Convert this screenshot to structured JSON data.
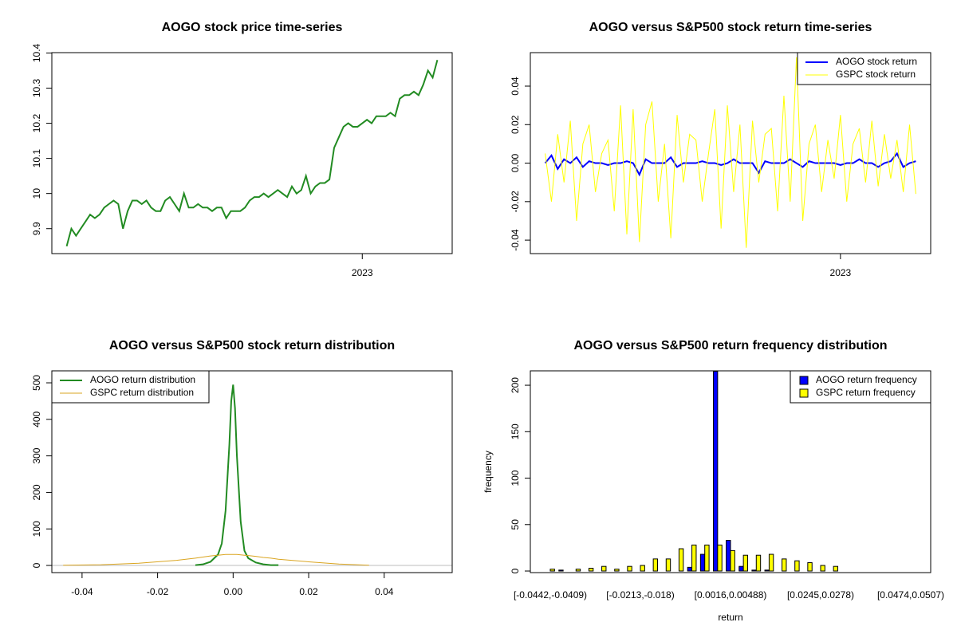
{
  "chart_data": [
    {
      "type": "line",
      "title": "AOGO stock price time-series",
      "color": "#228b22",
      "values": [
        9.85,
        9.9,
        9.88,
        9.9,
        9.92,
        9.94,
        9.93,
        9.94,
        9.96,
        9.97,
        9.98,
        9.97,
        9.9,
        9.95,
        9.98,
        9.98,
        9.97,
        9.98,
        9.96,
        9.95,
        9.95,
        9.98,
        9.99,
        9.97,
        9.95,
        10.0,
        9.96,
        9.96,
        9.97,
        9.96,
        9.96,
        9.95,
        9.96,
        9.96,
        9.93,
        9.95,
        9.95,
        9.95,
        9.96,
        9.98,
        9.99,
        9.99,
        10.0,
        9.99,
        10.0,
        10.01,
        10.0,
        9.99,
        10.02,
        10.0,
        10.01,
        10.05,
        10.0,
        10.02,
        10.03,
        10.03,
        10.04,
        10.13,
        10.16,
        10.19,
        10.2,
        10.19,
        10.19,
        10.2,
        10.21,
        10.2,
        10.22,
        10.22,
        10.22,
        10.23,
        10.22,
        10.27,
        10.28,
        10.28,
        10.29,
        10.28,
        10.31,
        10.35,
        10.33,
        10.38
      ],
      "xlim": [
        -3.16,
        82.16
      ],
      "xticks": [
        {
          "value": 63,
          "label": "2023"
        }
      ],
      "ylim": [
        9.829,
        10.401
      ],
      "yticks": [
        9.9,
        10.0,
        10.1,
        10.2,
        10.3,
        10.4
      ]
    },
    {
      "type": "line",
      "title": "AOGO versus S&P500 stock return time-series",
      "legend": "topright",
      "series": [
        {
          "name": "AOGO stock return",
          "color": "#0000ff",
          "values": [
            0,
            0.004,
            -0.003,
            0.002,
            0,
            0.003,
            -0.002,
            0.001,
            0,
            0,
            -0.001,
            0,
            0,
            0.001,
            0,
            -0.006,
            0.002,
            0,
            0,
            0,
            0.003,
            -0.002,
            0,
            0,
            0,
            0.001,
            0,
            0,
            -0.001,
            0,
            0.002,
            0,
            0,
            0,
            -0.005,
            0.001,
            0,
            0,
            0,
            0.002,
            0,
            -0.002,
            0.001,
            0,
            0,
            0,
            0,
            -0.001,
            0,
            0,
            0.002,
            0,
            0,
            -0.002,
            0,
            0.001,
            0.005,
            -0.002,
            0,
            0.001
          ]
        },
        {
          "name": "GSPC stock return",
          "color": "#ffff00",
          "values": [
            0.005,
            -0.02,
            0.015,
            -0.01,
            0.022,
            -0.03,
            0.01,
            0.02,
            -0.015,
            0.005,
            0.012,
            -0.025,
            0.03,
            -0.037,
            0.028,
            -0.041,
            0.02,
            0.032,
            -0.02,
            0.01,
            -0.039,
            0.025,
            -0.01,
            0.015,
            0.012,
            -0.02,
            0.005,
            0.028,
            -0.034,
            0.03,
            -0.015,
            0.02,
            -0.044,
            0.022,
            -0.01,
            0.015,
            0.018,
            -0.025,
            0.035,
            -0.02,
            0.055,
            -0.03,
            0.01,
            0.02,
            -0.015,
            0.012,
            -0.008,
            0.025,
            -0.02,
            0.01,
            0.018,
            -0.01,
            0.022,
            -0.012,
            0.015,
            -0.008,
            0.012,
            -0.015,
            0.02,
            -0.016
          ]
        }
      ],
      "xlim": [
        -2.36,
        61.36
      ],
      "xticks": [
        {
          "value": 47,
          "label": "2023"
        }
      ],
      "ylim": [
        -0.047,
        0.0574
      ],
      "yticks": [
        {
          "value": -0.04,
          "label": "-0.04"
        },
        {
          "value": -0.02,
          "label": "-0.02"
        },
        {
          "value": 0,
          "label": "0.00"
        },
        {
          "value": 0.02,
          "label": "0.02"
        },
        {
          "value": 0.04,
          "label": "0.04"
        }
      ]
    },
    {
      "type": "line",
      "title": "AOGO versus S&P500 stock return distribution",
      "legend": "topleft",
      "hline": 0,
      "x": [
        -0.045,
        -0.035,
        -0.025,
        -0.015,
        -0.01,
        -0.008,
        -0.006,
        -0.004,
        -0.003,
        -0.002,
        -0.001,
        -0.0005,
        0,
        0.0005,
        0.001,
        0.002,
        0.003,
        0.004,
        0.006,
        0.008,
        0.01,
        0.012,
        0.02,
        0.028,
        0.036
      ],
      "series": [
        {
          "name": "AOGO return distribution",
          "color": "#228b22",
          "values": [
            null,
            null,
            null,
            null,
            1,
            3,
            10,
            30,
            60,
            150,
            330,
            450,
            495,
            430,
            300,
            120,
            40,
            20,
            8,
            3,
            1,
            1,
            null,
            null,
            null
          ]
        },
        {
          "name": "GSPC return distribution",
          "color": "#daa520",
          "values": [
            0.5,
            2,
            6,
            14,
            20,
            23,
            26,
            28,
            29,
            30,
            30,
            30,
            30,
            30,
            30,
            29,
            28,
            27,
            25,
            22,
            20,
            17,
            10,
            4,
            0.5
          ]
        }
      ],
      "xlim": [
        -0.048,
        0.058
      ],
      "xticks": [
        {
          "value": -0.04,
          "label": "-0.04"
        },
        {
          "value": -0.02,
          "label": "-0.02"
        },
        {
          "value": 0,
          "label": "0.00"
        },
        {
          "value": 0.02,
          "label": "0.02"
        },
        {
          "value": 0.04,
          "label": "0.04"
        }
      ],
      "ylim": [
        -19.6,
        532.8
      ],
      "yticks": [
        0,
        100,
        200,
        300,
        400,
        500
      ]
    },
    {
      "type": "bar",
      "title": "AOGO versus S&P500 return frequency distribution",
      "legend": "topright",
      "xlabel": "return",
      "ylabel": "frequency",
      "categories": [
        "[-0.0442,-0.0409)",
        null,
        null,
        null,
        null,
        null,
        null,
        "[-0.0213,-0.018)",
        null,
        null,
        null,
        null,
        null,
        null,
        "[0.0016,0.00488)",
        null,
        null,
        null,
        null,
        null,
        null,
        "[0.0245,0.0278)",
        null,
        null,
        null,
        null,
        null,
        null,
        "[0.0474,0.0507)"
      ],
      "series": [
        {
          "name": "AOGO return frequency",
          "color": "#0000ff",
          "values": [
            0,
            1,
            0,
            0,
            0,
            0,
            0,
            0,
            0,
            0,
            0,
            4,
            18,
            215,
            33,
            5,
            1,
            1,
            0,
            0,
            0,
            0,
            0,
            0,
            0,
            0,
            0,
            0,
            0
          ]
        },
        {
          "name": "GSPC return frequency",
          "color": "#ffff00",
          "values": [
            2,
            0,
            2,
            3,
            5,
            2,
            5,
            6,
            13,
            13,
            24,
            28,
            28,
            28,
            22,
            17,
            17,
            18,
            13,
            11,
            9,
            6,
            5,
            0,
            0,
            0,
            0,
            0,
            0
          ]
        }
      ],
      "ylim": [
        -1.7,
        215.5
      ],
      "yticks": [
        0,
        50,
        100,
        150,
        200
      ]
    }
  ]
}
